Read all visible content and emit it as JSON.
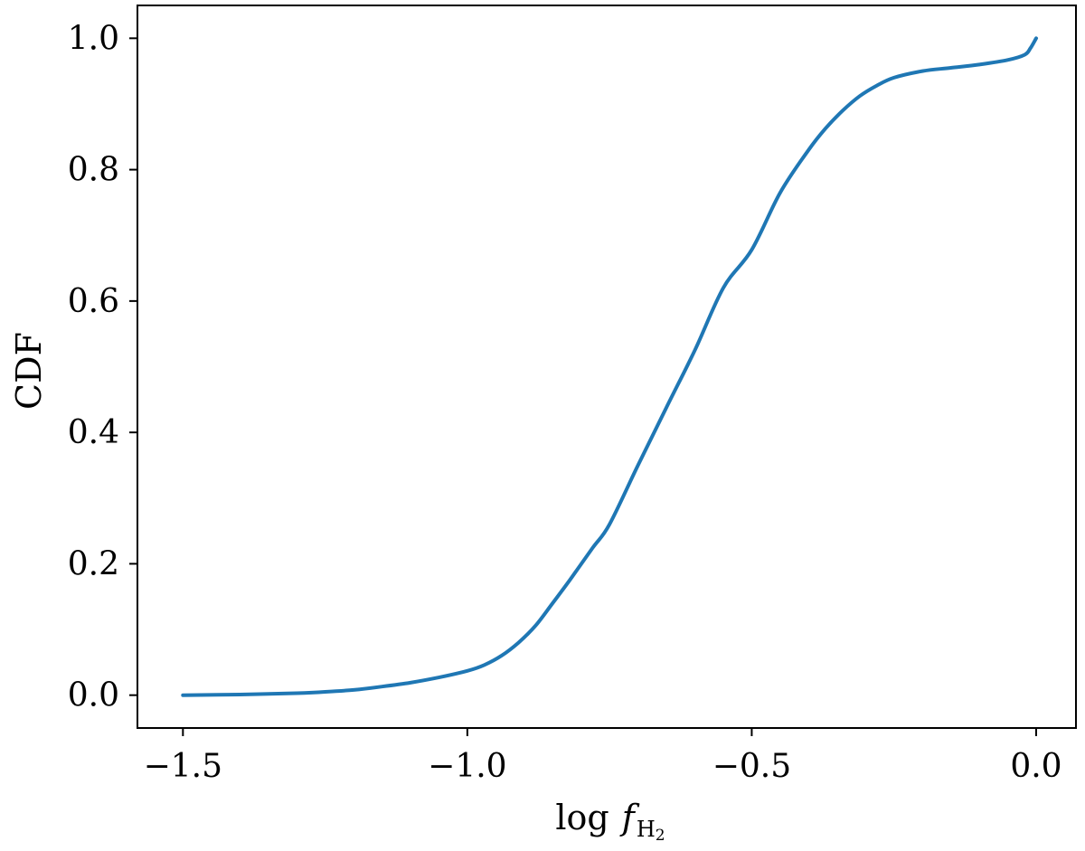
{
  "chart_data": {
    "type": "line",
    "xlabel": {
      "prefix": "log",
      "symbol": "f",
      "subscript": "H",
      "subscript2": "2"
    },
    "ylabel": "CDF",
    "xlim": [
      -1.58,
      0.07
    ],
    "ylim": [
      -0.05,
      1.05
    ],
    "xticks": [
      -1.5,
      -1.0,
      -0.5,
      0.0
    ],
    "xtick_labels": [
      "−1.5",
      "−1.0",
      "−0.5",
      "0.0"
    ],
    "yticks": [
      0.0,
      0.2,
      0.4,
      0.6,
      0.8,
      1.0
    ],
    "ytick_labels": [
      "0.0",
      "0.2",
      "0.4",
      "0.6",
      "0.8",
      "1.0"
    ],
    "grid": false,
    "line_color": "#1f77b4",
    "series": [
      {
        "x": [
          -1.5,
          -1.4,
          -1.3,
          -1.25,
          -1.2,
          -1.15,
          -1.1,
          -1.05,
          -1.0,
          -0.97,
          -0.94,
          -0.91,
          -0.88,
          -0.85,
          -0.82,
          -0.78,
          -0.75,
          -0.7,
          -0.65,
          -0.6,
          -0.55,
          -0.5,
          -0.45,
          -0.4,
          -0.37,
          -0.34,
          -0.31,
          -0.28,
          -0.25,
          -0.2,
          -0.15,
          -0.1,
          -0.05,
          -0.02,
          -0.01,
          0.0
        ],
        "y": [
          0.0,
          0.001,
          0.003,
          0.005,
          0.008,
          0.013,
          0.019,
          0.027,
          0.037,
          0.046,
          0.06,
          0.08,
          0.106,
          0.14,
          0.175,
          0.224,
          0.26,
          0.35,
          0.438,
          0.525,
          0.62,
          0.678,
          0.765,
          0.83,
          0.863,
          0.89,
          0.912,
          0.928,
          0.94,
          0.95,
          0.955,
          0.96,
          0.967,
          0.975,
          0.985,
          1.0
        ]
      }
    ]
  }
}
